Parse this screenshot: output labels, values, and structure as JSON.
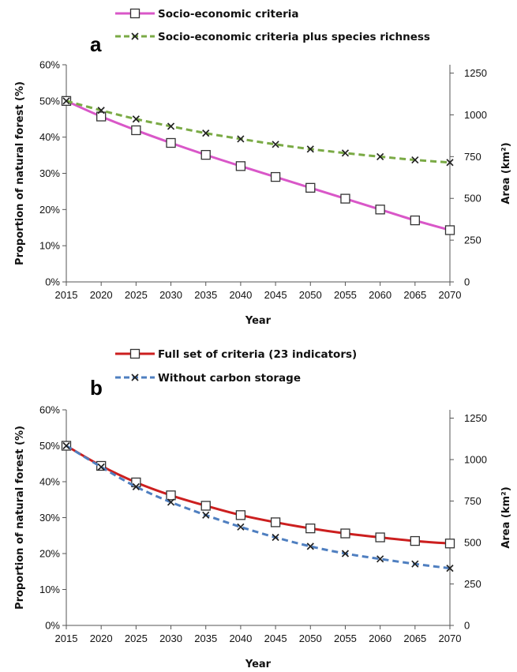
{
  "chart_data": [
    {
      "type": "line",
      "panel_label": "a",
      "x": [
        2015,
        2020,
        2025,
        2030,
        2035,
        2040,
        2045,
        2050,
        2055,
        2060,
        2065,
        2070
      ],
      "xlabel": "Year",
      "ylabel": "Proportion of natural forest  (%)",
      "ylabel_right": "Area (km²)",
      "ylim": [
        0,
        0.6
      ],
      "ylim_right": [
        0,
        1300
      ],
      "yticks": [
        "0%",
        "10%",
        "20%",
        "30%",
        "40%",
        "50%",
        "60%"
      ],
      "yticks_right": [
        "0",
        "250",
        "500",
        "750",
        "1000",
        "1250"
      ],
      "grid": false,
      "legend_position": "top",
      "series": [
        {
          "name": "Socio-economic criteria",
          "color": "#d957c8",
          "line_style": "solid",
          "marker": "open-square",
          "values": [
            0.5,
            0.457,
            0.419,
            0.384,
            0.351,
            0.32,
            0.29,
            0.26,
            0.23,
            0.2,
            0.17,
            0.143
          ]
        },
        {
          "name": "Socio-economic criteria plus species richness",
          "color": "#7aaa45",
          "line_style": "dashed",
          "marker": "x",
          "values": [
            0.5,
            0.474,
            0.45,
            0.43,
            0.411,
            0.395,
            0.38,
            0.367,
            0.356,
            0.346,
            0.337,
            0.33
          ]
        }
      ]
    },
    {
      "type": "line",
      "panel_label": "b",
      "x": [
        2015,
        2020,
        2025,
        2030,
        2035,
        2040,
        2045,
        2050,
        2055,
        2060,
        2065,
        2070
      ],
      "xlabel": "Year",
      "ylabel": "Proportion of natural forest  (%)",
      "ylabel_right": "Area (km²)",
      "ylim": [
        0,
        0.6
      ],
      "ylim_right": [
        0,
        1300
      ],
      "yticks": [
        "0%",
        "10%",
        "20%",
        "30%",
        "40%",
        "50%",
        "60%"
      ],
      "yticks_right": [
        "0",
        "250",
        "500",
        "750",
        "1000",
        "1250"
      ],
      "grid": false,
      "legend_position": "top",
      "series": [
        {
          "name": "Full set of criteria (23 indicators)",
          "color": "#cc1f1f",
          "line_style": "solid",
          "marker": "open-square",
          "values": [
            0.5,
            0.444,
            0.398,
            0.362,
            0.333,
            0.307,
            0.287,
            0.27,
            0.256,
            0.245,
            0.235,
            0.228
          ]
        },
        {
          "name": "Without carbon storage",
          "color": "#4f7fc0",
          "line_style": "dashed",
          "marker": "x",
          "values": [
            0.5,
            0.441,
            0.386,
            0.343,
            0.307,
            0.274,
            0.245,
            0.22,
            0.2,
            0.185,
            0.171,
            0.159
          ]
        }
      ]
    }
  ]
}
